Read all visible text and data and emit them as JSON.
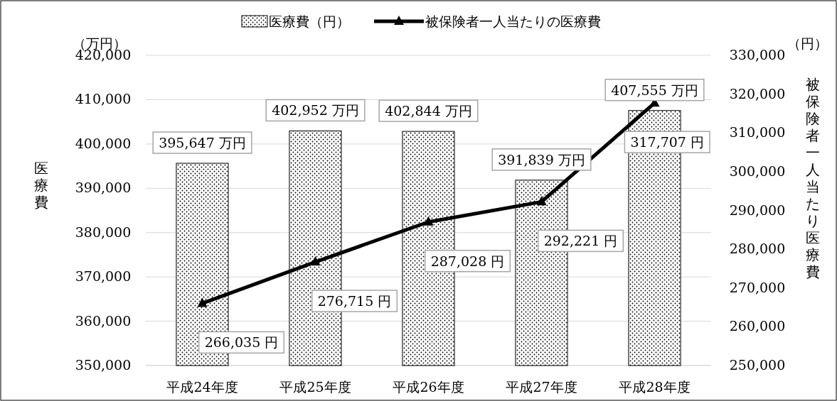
{
  "chart_data": {
    "type": "bar",
    "categories": [
      "平成24年度",
      "平成25年度",
      "平成26年度",
      "平成27年度",
      "平成28年度"
    ],
    "series": [
      {
        "name": "医療費（円）",
        "type": "bar",
        "color": "#000000",
        "values": [
          395647,
          402952,
          402844,
          391839,
          407555
        ],
        "value_labels": [
          "395,647 万円",
          "402,952 万円",
          "402,844 万円",
          "391,839 万円",
          "407,555 万円"
        ]
      },
      {
        "name": "被保険者一人当たりの医療費",
        "type": "line",
        "axis": "y2",
        "color": "#000000",
        "marker": "triangle",
        "values": [
          266035,
          276715,
          287028,
          292221,
          317707
        ],
        "value_labels": [
          "266,035 円",
          "276,715 円",
          "287,028 円",
          "292,221 円",
          "317,707 円"
        ]
      }
    ],
    "ylabel": "医療費",
    "y2label": "被保険者一人当たり医療費",
    "annotations": [
      "（万円）",
      "（円）"
    ],
    "ylim": [
      350000,
      420000
    ],
    "yticks": [
      {
        "value": 350000,
        "label": "350,000"
      },
      {
        "value": 360000,
        "label": "360,000"
      },
      {
        "value": 370000,
        "label": "370,000"
      },
      {
        "value": 380000,
        "label": "380,000"
      },
      {
        "value": 390000,
        "label": "390,000"
      },
      {
        "value": 400000,
        "label": "400,000"
      },
      {
        "value": 410000,
        "label": "410,000"
      },
      {
        "value": 420000,
        "label": "420,000"
      }
    ],
    "y2lim": [
      250000,
      330000
    ],
    "y2ticks": [
      {
        "value": 250000,
        "label": "250,000"
      },
      {
        "value": 260000,
        "label": "260,000"
      },
      {
        "value": 270000,
        "label": "270,000"
      },
      {
        "value": 280000,
        "label": "280,000"
      },
      {
        "value": 290000,
        "label": "290,000"
      },
      {
        "value": 300000,
        "label": "300,000"
      },
      {
        "value": 310000,
        "label": "310,000"
      },
      {
        "value": 320000,
        "label": "320,000"
      },
      {
        "value": 330000,
        "label": "330,000"
      }
    ],
    "grid": "y",
    "legend": "top"
  }
}
